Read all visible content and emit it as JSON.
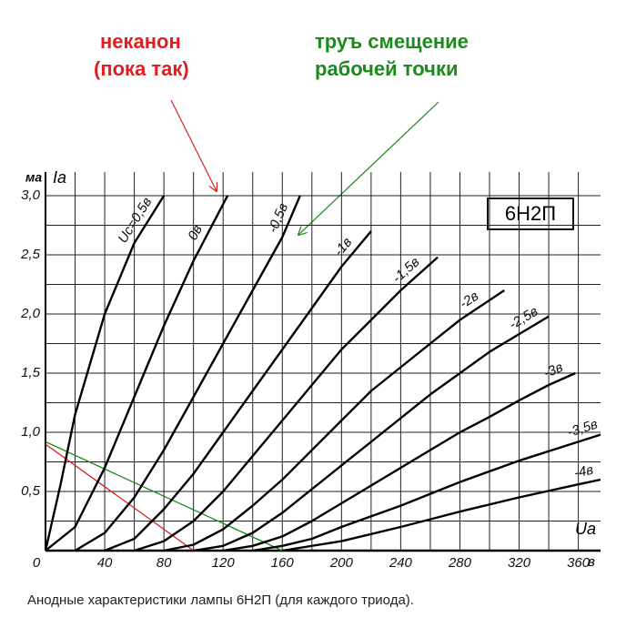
{
  "chart_data": {
    "type": "line",
    "title": "6Н2П",
    "caption": "Анодные характеристики лампы 6Н2П (для каждого триода).",
    "ylabel": "Iа",
    "y_unit": "ма",
    "xlabel": "Uа",
    "x_unit": "в",
    "xlim": [
      0,
      375
    ],
    "ylim": [
      0,
      3.2
    ],
    "xticks": [
      0,
      40,
      80,
      120,
      160,
      200,
      240,
      280,
      320,
      360
    ],
    "yticks": [
      0,
      {
        "value": 0.5,
        "label": "0,5"
      },
      {
        "value": 1.0,
        "label": "1,0"
      },
      {
        "value": 1.5,
        "label": "1,5"
      },
      {
        "value": 2.0,
        "label": "2,0"
      },
      {
        "value": 2.5,
        "label": "2,5"
      },
      {
        "value": 3.0,
        "label": "3,0"
      }
    ],
    "xminor": [
      20,
      60,
      100,
      140,
      180,
      220,
      260,
      300,
      340
    ],
    "yminor": [
      0.25,
      0.75,
      1.25,
      1.75,
      2.25,
      2.75
    ],
    "grid": true,
    "series": [
      {
        "name": "Uc=0,5в",
        "color": "#000000",
        "x": [
          0,
          10,
          20,
          40,
          60,
          80
        ],
        "values": [
          0,
          0.55,
          1.15,
          2.0,
          2.6,
          3.0
        ]
      },
      {
        "name": "0в",
        "color": "#000000",
        "x": [
          0,
          20,
          40,
          60,
          80,
          100,
          123
        ],
        "values": [
          0,
          0.2,
          0.7,
          1.3,
          1.9,
          2.45,
          3.0
        ]
      },
      {
        "name": "-0,5в",
        "color": "#000000",
        "x": [
          20,
          40,
          60,
          80,
          100,
          120,
          140,
          160,
          172
        ],
        "values": [
          0,
          0.15,
          0.45,
          0.85,
          1.3,
          1.75,
          2.2,
          2.65,
          3.0
        ]
      },
      {
        "name": "-1в",
        "color": "#000000",
        "x": [
          40,
          60,
          80,
          100,
          120,
          140,
          160,
          180,
          200,
          220
        ],
        "values": [
          0,
          0.1,
          0.35,
          0.65,
          1.0,
          1.35,
          1.7,
          2.05,
          2.4,
          2.7
        ]
      },
      {
        "name": "-1,5в",
        "color": "#000000",
        "x": [
          60,
          80,
          100,
          120,
          140,
          160,
          180,
          200,
          220,
          240,
          265
        ],
        "values": [
          0,
          0.08,
          0.25,
          0.5,
          0.8,
          1.1,
          1.4,
          1.7,
          1.95,
          2.2,
          2.48
        ]
      },
      {
        "name": "-2в",
        "color": "#000000",
        "x": [
          80,
          100,
          120,
          140,
          160,
          180,
          200,
          220,
          240,
          260,
          280,
          310
        ],
        "values": [
          0,
          0.05,
          0.18,
          0.38,
          0.6,
          0.85,
          1.1,
          1.35,
          1.55,
          1.75,
          1.95,
          2.2
        ]
      },
      {
        "name": "-2,5в",
        "color": "#000000",
        "x": [
          100,
          120,
          140,
          160,
          180,
          200,
          220,
          240,
          260,
          280,
          300,
          320,
          340
        ],
        "values": [
          0,
          0.04,
          0.15,
          0.32,
          0.52,
          0.72,
          0.92,
          1.12,
          1.32,
          1.5,
          1.68,
          1.83,
          1.98
        ]
      },
      {
        "name": "-3в",
        "color": "#000000",
        "x": [
          120,
          140,
          160,
          180,
          200,
          220,
          240,
          260,
          280,
          300,
          320,
          340,
          358
        ],
        "values": [
          0,
          0.04,
          0.12,
          0.25,
          0.4,
          0.55,
          0.7,
          0.85,
          1.0,
          1.13,
          1.27,
          1.4,
          1.5
        ]
      },
      {
        "name": "-3,5в",
        "color": "#000000",
        "x": [
          140,
          160,
          180,
          200,
          240,
          280,
          320,
          360,
          375
        ],
        "values": [
          0,
          0.04,
          0.1,
          0.2,
          0.38,
          0.58,
          0.76,
          0.92,
          0.98
        ]
      },
      {
        "name": "-4в",
        "color": "#000000",
        "x": [
          160,
          200,
          240,
          280,
          320,
          360,
          375
        ],
        "values": [
          0,
          0.08,
          0.2,
          0.33,
          0.45,
          0.56,
          0.6
        ]
      }
    ],
    "load_lines": [
      {
        "color": "#d42020",
        "x": [
          0,
          100
        ],
        "values": [
          0.9,
          0
        ]
      },
      {
        "color": "#1a8a1a",
        "x": [
          0,
          160
        ],
        "values": [
          0.92,
          0
        ]
      }
    ],
    "annotations": [
      {
        "text": "неканон",
        "color": "#e02020"
      },
      {
        "text": "(пока так)",
        "color": "#e02020"
      },
      {
        "text": "труъ смещение",
        "color": "#1e8a1e"
      },
      {
        "text": "рабочей точки",
        "color": "#1e8a1e"
      }
    ]
  }
}
